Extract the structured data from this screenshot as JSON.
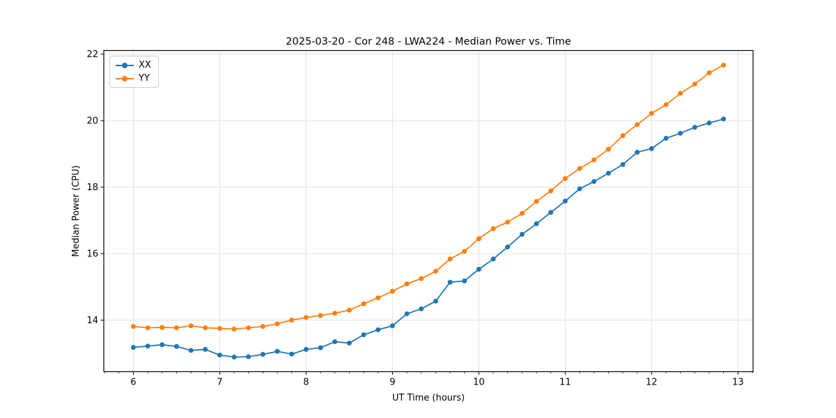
{
  "chart_data": {
    "type": "line",
    "title": "2025-03-20 - Cor 248 - LWA224 - Median Power vs. Time",
    "xlabel": "UT Time (hours)",
    "ylabel": "Median Power (CPU)",
    "xlim": [
      5.658,
      13.175
    ],
    "ylim": [
      12.45,
      22.11
    ],
    "xticks": [
      6,
      7,
      8,
      9,
      10,
      11,
      12,
      13
    ],
    "yticks": [
      14,
      16,
      18,
      20,
      22
    ],
    "x_minor_tick_step": 0.16667,
    "grid": "on",
    "legend_position": "upper-left",
    "x": [
      6.0,
      6.167,
      6.333,
      6.5,
      6.667,
      6.833,
      7.0,
      7.167,
      7.333,
      7.5,
      7.667,
      7.833,
      8.0,
      8.167,
      8.333,
      8.5,
      8.667,
      8.833,
      9.0,
      9.167,
      9.333,
      9.5,
      9.667,
      9.833,
      10.0,
      10.167,
      10.333,
      10.5,
      10.667,
      10.833,
      11.0,
      11.167,
      11.333,
      11.5,
      11.667,
      11.833,
      12.0,
      12.167,
      12.333,
      12.5,
      12.667,
      12.833
    ],
    "series": [
      {
        "name": "XX",
        "color": "#1f77b4",
        "values": [
          13.18,
          13.22,
          13.26,
          13.21,
          13.09,
          13.12,
          12.95,
          12.89,
          12.9,
          12.97,
          13.06,
          12.98,
          13.12,
          13.17,
          13.35,
          13.31,
          13.56,
          13.71,
          13.83,
          14.19,
          14.34,
          14.57,
          15.14,
          15.18,
          15.53,
          15.84,
          16.2,
          16.58,
          16.9,
          17.24,
          17.58,
          17.95,
          18.17,
          18.42,
          18.68,
          19.05,
          19.16,
          19.47,
          19.62,
          19.8,
          19.93,
          20.05
        ]
      },
      {
        "name": "YY",
        "color": "#ff7f0e",
        "values": [
          13.81,
          13.77,
          13.78,
          13.77,
          13.83,
          13.77,
          13.75,
          13.73,
          13.77,
          13.81,
          13.89,
          14.0,
          14.08,
          14.14,
          14.21,
          14.3,
          14.49,
          14.67,
          14.87,
          15.09,
          15.25,
          15.47,
          15.84,
          16.07,
          16.45,
          16.75,
          16.95,
          17.21,
          17.57,
          17.89,
          18.26,
          18.56,
          18.82,
          19.14,
          19.55,
          19.88,
          20.22,
          20.48,
          20.82,
          21.1,
          21.44,
          21.67
        ]
      }
    ],
    "style": {
      "grid_color": "#e0e0e0",
      "spine_color": "#000000",
      "marker_radius": 3.5,
      "line_width": 1.8
    }
  }
}
